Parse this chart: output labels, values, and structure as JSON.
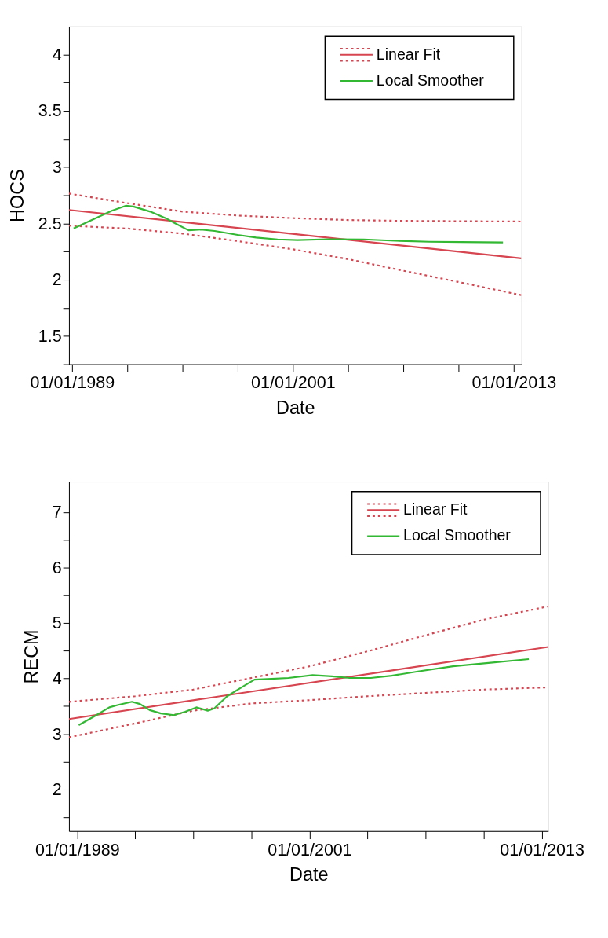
{
  "chart_data": [
    {
      "type": "line",
      "xlabel": "Date",
      "ylabel": "HOCS",
      "legend": "top right",
      "xlim": [
        "1988-11-01",
        "2013-06-01"
      ],
      "xticks": [
        {
          "value": "1989-01-01",
          "label": "01/01/1989"
        },
        {
          "value": "1992-01-01",
          "label": null
        },
        {
          "value": "1995-01-01",
          "label": null
        },
        {
          "value": "1998-01-01",
          "label": null
        },
        {
          "value": "2001-01-01",
          "label": "01/01/2001"
        },
        {
          "value": "2004-01-01",
          "label": null
        },
        {
          "value": "2007-01-01",
          "label": null
        },
        {
          "value": "2010-01-01",
          "label": null
        },
        {
          "value": "2013-01-01",
          "label": "01/01/2013"
        }
      ],
      "ylim": [
        1.25,
        4.25
      ],
      "yticks": [
        {
          "value": 1.25,
          "label": null
        },
        1.5,
        {
          "value": 1.75,
          "label": null
        },
        2,
        {
          "value": 2.25,
          "label": null
        },
        2.5,
        {
          "value": 2.75,
          "label": null
        },
        3,
        {
          "value": 3.25,
          "label": null
        },
        3.5,
        {
          "value": 3.75,
          "label": null
        },
        4
      ],
      "series": [
        {
          "name": "Linear Fit",
          "color": "#d64550",
          "line_style": "solid",
          "x": [
            "1988-11-01",
            "2013-06-01"
          ],
          "values": [
            2.62,
            2.19
          ]
        },
        {
          "color": "#d64550",
          "line_style": "dotted",
          "x": [
            "1988-11-01",
            "1992-01-01",
            "1995-01-01",
            "1998-01-01",
            "2001-01-01",
            "2004-01-01",
            "2007-01-01",
            "2010-01-01",
            "2013-06-01"
          ],
          "values": [
            2.765,
            2.68,
            2.605,
            2.57,
            2.547,
            2.53,
            2.523,
            2.52,
            2.517
          ]
        },
        {
          "color": "#d64550",
          "line_style": "dotted",
          "x": [
            "1988-11-01",
            "1992-01-01",
            "1995-01-01",
            "1998-01-01",
            "2001-01-01",
            "2004-01-01",
            "2007-01-01",
            "2010-01-01",
            "2013-06-01"
          ],
          "values": [
            2.48,
            2.455,
            2.41,
            2.343,
            2.27,
            2.183,
            2.08,
            1.98,
            1.863
          ]
        },
        {
          "name": "Local Smoother",
          "color": "#33b833",
          "line_style": "solid",
          "x": [
            "1989-02-01",
            "1991-03-01",
            "1991-12-01",
            "1992-05-01",
            "1993-04-01",
            "1994-02-01",
            "1994-08-01",
            "1995-05-01",
            "1996-01-01",
            "1996-10-01",
            "1998-01-01",
            "1999-01-01",
            "2000-03-01",
            "2001-04-01",
            "2003-01-01",
            "2004-11-01",
            "2006-08-01",
            "2008-06-01",
            "2010-03-01",
            "2012-06-01"
          ],
          "values": [
            2.456,
            2.613,
            2.657,
            2.65,
            2.605,
            2.547,
            2.503,
            2.439,
            2.445,
            2.433,
            2.398,
            2.375,
            2.358,
            2.352,
            2.36,
            2.358,
            2.346,
            2.337,
            2.334,
            2.331
          ]
        }
      ]
    },
    {
      "type": "line",
      "xlabel": "Date",
      "ylabel": "RECM",
      "legend": "top right",
      "xlim": [
        "1988-08-01",
        "2013-05-01"
      ],
      "xticks": [
        {
          "value": "1989-01-01",
          "label": "01/01/1989"
        },
        {
          "value": "1992-01-01",
          "label": null
        },
        {
          "value": "1995-01-01",
          "label": null
        },
        {
          "value": "1998-01-01",
          "label": null
        },
        {
          "value": "2001-01-01",
          "label": "01/01/2001"
        },
        {
          "value": "2004-01-01",
          "label": null
        },
        {
          "value": "2007-01-01",
          "label": null
        },
        {
          "value": "2010-01-01",
          "label": null
        },
        {
          "value": "2013-01-01",
          "label": "01/01/2013"
        }
      ],
      "ylim": [
        1.25,
        7.55
      ],
      "yticks": [
        {
          "value": 1.5,
          "label": null
        },
        2,
        {
          "value": 2.5,
          "label": null
        },
        3,
        {
          "value": 3.5,
          "label": null
        },
        4,
        {
          "value": 4.5,
          "label": null
        },
        5,
        {
          "value": 5.5,
          "label": null
        },
        6,
        {
          "value": 6.5,
          "label": null
        },
        7,
        {
          "value": 7.5,
          "label": null
        }
      ],
      "series": [
        {
          "name": "Linear Fit",
          "color": "#d64550",
          "line_style": "solid",
          "x": [
            "1988-08-01",
            "2013-05-01"
          ],
          "values": [
            3.27,
            4.57
          ]
        },
        {
          "color": "#d64550",
          "line_style": "dotted",
          "x": [
            "1988-08-01",
            "1992-01-01",
            "1995-01-01",
            "1998-01-01",
            "2001-01-01",
            "2004-01-01",
            "2007-01-01",
            "2010-01-01",
            "2013-05-01"
          ],
          "values": [
            3.58,
            3.68,
            3.8,
            4.01,
            4.22,
            4.49,
            4.78,
            5.06,
            5.3
          ]
        },
        {
          "color": "#d64550",
          "line_style": "dotted",
          "x": [
            "1988-08-01",
            "1992-01-01",
            "1995-01-01",
            "1998-01-01",
            "2001-01-01",
            "2004-01-01",
            "2007-01-01",
            "2010-01-01",
            "2013-05-01"
          ],
          "values": [
            2.94,
            3.19,
            3.42,
            3.55,
            3.61,
            3.68,
            3.74,
            3.8,
            3.84
          ]
        },
        {
          "name": "Local Smoother",
          "color": "#33b833",
          "line_style": "solid",
          "x": [
            "1989-02-01",
            "1990-01-01",
            "1990-09-01",
            "1991-02-01",
            "1991-11-01",
            "1992-04-01",
            "1992-10-01",
            "1993-05-01",
            "1994-01-01",
            "1994-08-01",
            "1995-03-01",
            "1995-10-01",
            "1996-02-01",
            "1996-10-01",
            "1997-08-01",
            "1998-03-01",
            "1998-11-01",
            "1999-12-01",
            "2001-03-01",
            "2002-03-01",
            "2003-02-01",
            "2004-03-01",
            "2005-04-01",
            "2006-09-01",
            "2008-06-01",
            "2010-04-01",
            "2012-05-01"
          ],
          "values": [
            3.16,
            3.34,
            3.48,
            3.52,
            3.58,
            3.54,
            3.43,
            3.37,
            3.34,
            3.4,
            3.48,
            3.42,
            3.46,
            3.68,
            3.86,
            3.98,
            3.99,
            4.01,
            4.06,
            4.04,
            4.01,
            4.01,
            4.05,
            4.13,
            4.22,
            4.28,
            4.35
          ]
        }
      ]
    }
  ]
}
